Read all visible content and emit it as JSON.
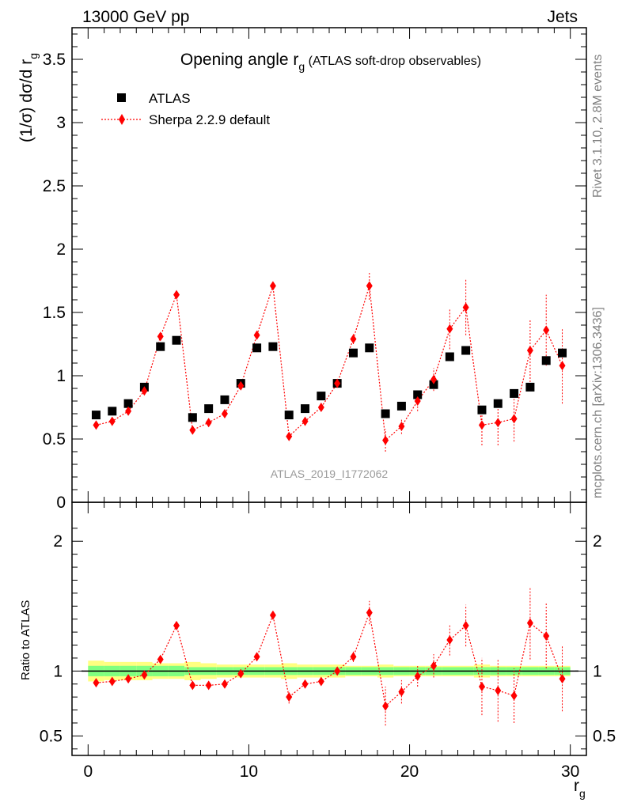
{
  "header": {
    "left": "13000 GeV pp",
    "right": "Jets"
  },
  "side_labels": {
    "rivet": "Rivet 3.1.10,  2.8M events",
    "mcplots": "mcplots.cern.ch [arXiv:1306.3436]"
  },
  "colors": {
    "data": "#000000",
    "mc": "#ff0000",
    "band_outer": "#ffff80",
    "band_inner": "#80ff80"
  },
  "chart_data": [
    {
      "type": "scatter",
      "title": "Opening angle r",
      "title_sub": "g",
      "title_suffix": " (ATLAS soft-drop observables)",
      "ylabel": "(1/σ) dσ/d r",
      "ylabel_sub": "g",
      "xlabel": "r",
      "xlabel_sub": "g",
      "watermark": "ATLAS_2019_I1772062",
      "xlim": [
        -1,
        31
      ],
      "ylim": [
        0,
        3.75
      ],
      "yticks": [
        "0",
        "0.5",
        "1",
        "1.5",
        "2",
        "2.5",
        "3",
        "3.5"
      ],
      "x": [
        0.5,
        1.5,
        2.5,
        3.5,
        4.5,
        5.5,
        6.5,
        7.5,
        8.5,
        9.5,
        10.5,
        11.5,
        12.5,
        13.5,
        14.5,
        15.5,
        16.5,
        17.5,
        18.5,
        19.5,
        20.5,
        21.5,
        22.5,
        23.5,
        24.5,
        25.5,
        26.5,
        27.5,
        28.5,
        29.5
      ],
      "series": [
        {
          "name": "ATLAS",
          "marker": "square",
          "values": [
            0.69,
            0.72,
            0.78,
            0.91,
            1.23,
            1.28,
            0.67,
            0.74,
            0.81,
            0.94,
            1.22,
            1.23,
            0.69,
            0.74,
            0.84,
            0.94,
            1.18,
            1.22,
            0.7,
            0.76,
            0.85,
            0.93,
            1.15,
            1.2,
            0.73,
            0.78,
            0.86,
            0.91,
            1.12,
            1.18
          ]
        },
        {
          "name": "Sherpa 2.2.9 default",
          "marker": "diamond",
          "line": "dotted",
          "values": [
            0.61,
            0.64,
            0.72,
            0.88,
            1.31,
            1.64,
            0.57,
            0.63,
            0.7,
            0.92,
            1.32,
            1.71,
            0.52,
            0.64,
            0.75,
            0.94,
            1.29,
            1.71,
            0.49,
            0.6,
            0.8,
            0.97,
            1.37,
            1.54,
            0.61,
            0.63,
            0.66,
            1.2,
            1.36,
            1.08
          ],
          "errors": [
            0.01,
            0.01,
            0.01,
            0.01,
            0.02,
            0.02,
            0.01,
            0.01,
            0.01,
            0.02,
            0.02,
            0.03,
            0.02,
            0.02,
            0.02,
            0.03,
            0.04,
            0.11,
            0.09,
            0.06,
            0.08,
            0.09,
            0.16,
            0.22,
            0.16,
            0.18,
            0.18,
            0.25,
            0.28,
            0.3
          ]
        }
      ]
    },
    {
      "type": "scatter",
      "ylabel": "Ratio to ATLAS",
      "xlabel": "r",
      "xlabel_sub": "g",
      "xlim": [
        -1,
        31
      ],
      "ylim": [
        0.35,
        2.3
      ],
      "yticks": [
        "0.5",
        "1",
        "2"
      ],
      "xticks": [
        "0",
        "10",
        "20",
        "30"
      ],
      "reference": 1,
      "band_inner": [
        0.04,
        0.04,
        0.04,
        0.04,
        0.04,
        0.04,
        0.03,
        0.03,
        0.03,
        0.03,
        0.03,
        0.03,
        0.03,
        0.03,
        0.03,
        0.03,
        0.03,
        0.03,
        0.03,
        0.03,
        0.03,
        0.03,
        0.03,
        0.03,
        0.03,
        0.03,
        0.03,
        0.03,
        0.03,
        0.03
      ],
      "band_outer": [
        0.08,
        0.07,
        0.07,
        0.07,
        0.06,
        0.06,
        0.07,
        0.06,
        0.05,
        0.05,
        0.05,
        0.05,
        0.06,
        0.05,
        0.05,
        0.05,
        0.04,
        0.04,
        0.05,
        0.04,
        0.04,
        0.04,
        0.04,
        0.04,
        0.05,
        0.04,
        0.04,
        0.04,
        0.04,
        0.04
      ],
      "series": [
        {
          "name": "Sherpa 2.2.9 default / ATLAS",
          "values": [
            0.91,
            0.92,
            0.94,
            0.97,
            1.09,
            1.35,
            0.89,
            0.89,
            0.9,
            0.98,
            1.11,
            1.43,
            0.8,
            0.9,
            0.92,
            1.0,
            1.11,
            1.45,
            0.73,
            0.84,
            0.96,
            1.04,
            1.24,
            1.35,
            0.88,
            0.85,
            0.81,
            1.37,
            1.27,
            0.94
          ],
          "errors": [
            0.01,
            0.01,
            0.01,
            0.01,
            0.01,
            0.02,
            0.01,
            0.01,
            0.01,
            0.02,
            0.02,
            0.03,
            0.05,
            0.03,
            0.03,
            0.03,
            0.04,
            0.09,
            0.15,
            0.09,
            0.08,
            0.09,
            0.12,
            0.16,
            0.22,
            0.24,
            0.21,
            0.28,
            0.25,
            0.25
          ]
        }
      ]
    }
  ]
}
